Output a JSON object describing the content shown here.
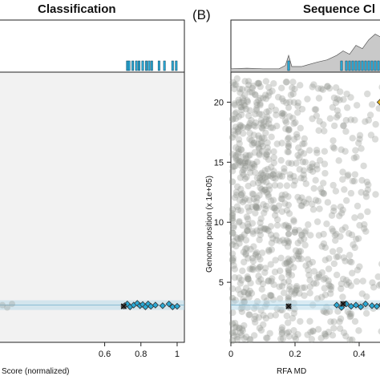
{
  "colors": {
    "panel_bg_left": "#f2f2f2",
    "highlight": "#29a9d6",
    "highlight_edge": "#0d3f56",
    "grey_points": "#8e938c",
    "density_fill": "#c9c9c9",
    "band": "#b9dbea",
    "gold": "#e9b51a"
  },
  "chart_data": [
    {
      "panel": "A",
      "type": "scatter",
      "title": "Classification",
      "panel_label": "",
      "xlabel": "Score (normalized)",
      "ylabel": "",
      "xlim": [
        0.0,
        1.04
      ],
      "ylim": [
        0,
        22.5
      ],
      "x_ticks": [
        "0.6",
        "0.8",
        "1"
      ],
      "x_tick_values": [
        0.6,
        0.8,
        1.0
      ],
      "grid": false,
      "rug_x": [
        0.725,
        0.735,
        0.755,
        0.775,
        0.79,
        0.81,
        0.83,
        0.845,
        0.86,
        0.9,
        0.93,
        0.975,
        0.995
      ],
      "series": [
        {
          "marker": "diamond",
          "color": "#29a9d6",
          "x": [
            0.71,
            0.725,
            0.74,
            0.76,
            0.78,
            0.795,
            0.81,
            0.825,
            0.84,
            0.855,
            0.88,
            0.92,
            0.955,
            0.975,
            1.0
          ],
          "y": [
            3.05,
            3.2,
            2.95,
            3.1,
            3.25,
            3.05,
            3.15,
            2.95,
            3.2,
            3.0,
            3.1,
            3.05,
            3.2,
            2.95,
            3.0
          ]
        },
        {
          "marker": "x",
          "color": "#111111",
          "x": [
            0.705
          ],
          "y": [
            3.0
          ]
        }
      ],
      "band_y": [
        2.7,
        3.5
      ]
    },
    {
      "panel": "B",
      "type": "scatter",
      "title": "Sequence Cl",
      "panel_label": "(B)",
      "xlabel": "RFA MD",
      "ylabel": "Genome position (x 1e+05)",
      "xlim": [
        0.0,
        0.5
      ],
      "ylim": [
        0,
        22.5
      ],
      "x_ticks": [
        "0",
        "0.2",
        "0.4"
      ],
      "x_tick_values": [
        0.0,
        0.2,
        0.4
      ],
      "y_ticks": [
        "5",
        "10",
        "15",
        "20"
      ],
      "y_tick_values": [
        5,
        10,
        15,
        20
      ],
      "grid": false,
      "rug_x": [
        0.18,
        0.345,
        0.36,
        0.37,
        0.38,
        0.39,
        0.4,
        0.41,
        0.42,
        0.43,
        0.44,
        0.45,
        0.46
      ],
      "density_x": [
        0.0,
        0.05,
        0.1,
        0.15,
        0.17,
        0.18,
        0.19,
        0.22,
        0.27,
        0.3,
        0.33,
        0.35,
        0.37,
        0.39,
        0.41,
        0.43,
        0.45,
        0.47,
        0.49,
        0.5
      ],
      "density_y": [
        0.3,
        0.35,
        0.3,
        0.3,
        0.6,
        1.5,
        0.5,
        0.5,
        0.9,
        1.1,
        1.5,
        1.9,
        1.6,
        2.4,
        2.1,
        2.9,
        3.4,
        3.1,
        3.8,
        3.6
      ],
      "series": [
        {
          "marker": "diamond",
          "color": "#29a9d6",
          "x": [
            0.33,
            0.345,
            0.36,
            0.375,
            0.39,
            0.405,
            0.42,
            0.44,
            0.455,
            0.47
          ],
          "y": [
            3.1,
            2.9,
            3.2,
            3.0,
            3.1,
            2.95,
            3.2,
            3.05,
            3.0,
            3.15
          ]
        },
        {
          "marker": "x",
          "color": "#111111",
          "x": [
            0.18,
            0.35
          ],
          "y": [
            3.0,
            3.2
          ]
        },
        {
          "marker": "diamond",
          "color": "#e9b51a",
          "x": [
            0.465
          ],
          "y": [
            20.0
          ]
        }
      ],
      "band_y": [
        2.7,
        3.5
      ]
    }
  ]
}
